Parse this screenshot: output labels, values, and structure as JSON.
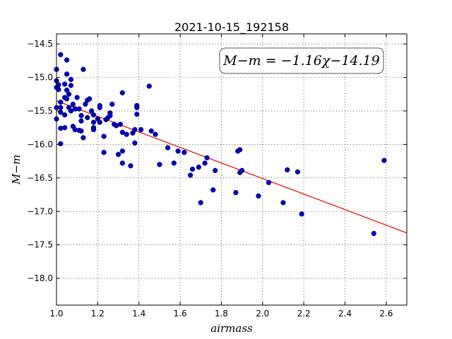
{
  "chart_data": {
    "type": "scatter",
    "title": "2021-10-15_192158",
    "xlabel": "airmass",
    "ylabel": "M−m",
    "annotation": "M−m = −1.16χ−14.19",
    "xlim": [
      1.0,
      2.7
    ],
    "ylim": [
      -18.4,
      -14.35
    ],
    "x_ticks": [
      1.0,
      1.2,
      1.4,
      1.6,
      1.8,
      2.0,
      2.2,
      2.4,
      2.6
    ],
    "x_tick_labels": [
      "1.0",
      "1.2",
      "1.4",
      "1.6",
      "1.8",
      "2.0",
      "2.2",
      "2.4",
      "2.6"
    ],
    "y_ticks": [
      -14.5,
      -15.0,
      -15.5,
      -16.0,
      -16.5,
      -17.0,
      -17.5,
      -18.0
    ],
    "y_tick_labels": [
      "−14.5",
      "−15.0",
      "−15.5",
      "−16.0",
      "−16.5",
      "−17.0",
      "−17.5",
      "−18.0"
    ],
    "grid": true,
    "point_color": "#0000cc",
    "fit_color": "#dd0000",
    "fit": {
      "slope": -1.16,
      "intercept": -14.19
    },
    "points": [
      [
        1.0,
        -14.88
      ],
      [
        1.0,
        -15.05
      ],
      [
        1.0,
        -15.15
      ],
      [
        1.01,
        -15.11
      ],
      [
        1.01,
        -15.18
      ],
      [
        1.0,
        -15.45
      ],
      [
        1.0,
        -15.62
      ],
      [
        1.02,
        -15.37
      ],
      [
        1.02,
        -15.52
      ],
      [
        1.02,
        -15.45
      ],
      [
        1.02,
        -14.66
      ],
      [
        1.02,
        -15.76
      ],
      [
        1.02,
        -15.99
      ],
      [
        1.04,
        -15.1
      ],
      [
        1.04,
        -15.3
      ],
      [
        1.04,
        -15.56
      ],
      [
        1.04,
        -15.75
      ],
      [
        1.05,
        -14.95
      ],
      [
        1.05,
        -14.74
      ],
      [
        1.05,
        -15.19
      ],
      [
        1.05,
        -15.32
      ],
      [
        1.06,
        -15.25
      ],
      [
        1.06,
        -15.45
      ],
      [
        1.07,
        -15.03
      ],
      [
        1.07,
        -15.12
      ],
      [
        1.07,
        -15.5
      ],
      [
        1.08,
        -15.4
      ],
      [
        1.08,
        -15.73
      ],
      [
        1.09,
        -15.47
      ],
      [
        1.09,
        -15.78
      ],
      [
        1.1,
        -15.3
      ],
      [
        1.11,
        -15.79
      ],
      [
        1.11,
        -15.47
      ],
      [
        1.12,
        -15.57
      ],
      [
        1.12,
        -15.65
      ],
      [
        1.12,
        -15.8
      ],
      [
        1.13,
        -15.9
      ],
      [
        1.13,
        -14.88
      ],
      [
        1.14,
        -15.4
      ],
      [
        1.15,
        -15.6
      ],
      [
        1.15,
        -15.34
      ],
      [
        1.16,
        -15.32
      ],
      [
        1.17,
        -15.5
      ],
      [
        1.18,
        -15.56
      ],
      [
        1.18,
        -15.67
      ],
      [
        1.18,
        -15.75
      ],
      [
        1.18,
        -15.78
      ],
      [
        1.2,
        -15.62
      ],
      [
        1.21,
        -15.67
      ],
      [
        1.21,
        -15.42
      ],
      [
        1.21,
        -15.45
      ],
      [
        1.23,
        -15.88
      ],
      [
        1.23,
        -16.12
      ],
      [
        1.24,
        -15.63
      ],
      [
        1.25,
        -15.6
      ],
      [
        1.26,
        -15.53
      ],
      [
        1.26,
        -15.57
      ],
      [
        1.27,
        -15.4
      ],
      [
        1.28,
        -15.7
      ],
      [
        1.29,
        -15.72
      ],
      [
        1.3,
        -16.15
      ],
      [
        1.31,
        -15.7
      ],
      [
        1.32,
        -16.1
      ],
      [
        1.32,
        -16.28
      ],
      [
        1.32,
        -15.23
      ],
      [
        1.32,
        -15.82
      ],
      [
        1.34,
        -15.85
      ],
      [
        1.36,
        -16.32
      ],
      [
        1.37,
        -15.83
      ],
      [
        1.38,
        -15.98
      ],
      [
        1.38,
        -15.78
      ],
      [
        1.39,
        -15.55
      ],
      [
        1.39,
        -15.42
      ],
      [
        1.39,
        -15.45
      ],
      [
        1.41,
        -15.78
      ],
      [
        1.45,
        -15.13
      ],
      [
        1.46,
        -15.8
      ],
      [
        1.48,
        -15.85
      ],
      [
        1.5,
        -16.3
      ],
      [
        1.54,
        -16.05
      ],
      [
        1.57,
        -16.28
      ],
      [
        1.59,
        -16.1
      ],
      [
        1.62,
        -16.12
      ],
      [
        1.65,
        -16.46
      ],
      [
        1.66,
        -16.37
      ],
      [
        1.69,
        -16.34
      ],
      [
        1.7,
        -16.87
      ],
      [
        1.72,
        -16.28
      ],
      [
        1.73,
        -16.2
      ],
      [
        1.76,
        -16.68
      ],
      [
        1.77,
        -16.39
      ],
      [
        1.87,
        -16.72
      ],
      [
        1.88,
        -16.1
      ],
      [
        1.89,
        -16.08
      ],
      [
        1.89,
        -16.42
      ],
      [
        1.9,
        -16.39
      ],
      [
        1.98,
        -16.77
      ],
      [
        2.03,
        -16.57
      ],
      [
        2.1,
        -16.87
      ],
      [
        2.12,
        -16.38
      ],
      [
        2.17,
        -16.41
      ],
      [
        2.19,
        -17.04
      ],
      [
        2.54,
        -17.33
      ],
      [
        2.59,
        -16.24
      ]
    ]
  }
}
